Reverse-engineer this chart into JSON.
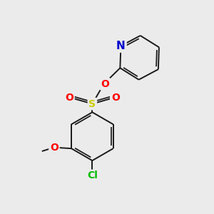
{
  "bg_color": "#ebebeb",
  "bond_color": "#1a1a1a",
  "bond_width": 1.4,
  "atom_colors": {
    "N": "#0000cc",
    "O": "#ff0000",
    "S": "#cccc00",
    "Cl": "#00bb00",
    "C": "#1a1a1a"
  },
  "font_size_atom": 10
}
